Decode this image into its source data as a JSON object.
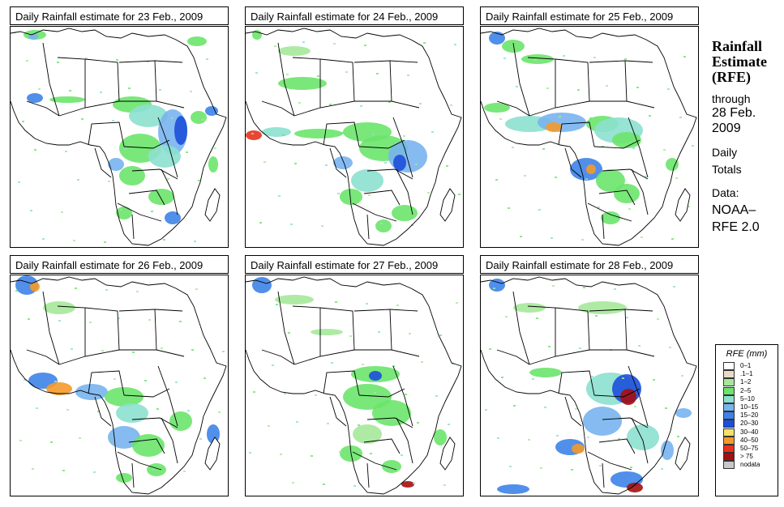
{
  "panels": [
    {
      "title": "Daily Rainfall estimate for  23 Feb., 2009",
      "day": 23
    },
    {
      "title": "Daily Rainfall estimate for  24 Feb., 2009",
      "day": 24
    },
    {
      "title": "Daily Rainfall estimate for  25 Feb., 2009",
      "day": 25
    },
    {
      "title": "Daily Rainfall estimate for  26 Feb., 2009",
      "day": 26
    },
    {
      "title": "Daily Rainfall estimate for  27 Feb., 2009",
      "day": 27
    },
    {
      "title": "Daily Rainfall estimate for  28 Feb., 2009",
      "day": 28
    }
  ],
  "info": {
    "title_line1": "Rainfall",
    "title_line2": "Estimate",
    "title_line3": "(RFE)",
    "through": "through",
    "through_date_1": "28 Feb.",
    "through_date_2": "2009",
    "period_1": "Daily",
    "period_2": "Totals",
    "data_label": "Data:",
    "data_source_1": "NOAA–",
    "data_source_2": "RFE 2.0"
  },
  "legend": {
    "title": "RFE (mm)",
    "items": [
      {
        "label": "0–1",
        "color": "#ffffff"
      },
      {
        "label": ".1–1",
        "color": "#e8dcc8"
      },
      {
        "label": "1–2",
        "color": "#a6e89a"
      },
      {
        "label": "2–5",
        "color": "#6be46b"
      },
      {
        "label": "5–10",
        "color": "#8ce0cf"
      },
      {
        "label": "10–15",
        "color": "#78b4ee"
      },
      {
        "label": "15–20",
        "color": "#3d83e8"
      },
      {
        "label": "20–30",
        "color": "#1c4fd9"
      },
      {
        "label": "30–40",
        "color": "#f5e06a"
      },
      {
        "label": "40–50",
        "color": "#f59a2a"
      },
      {
        "label": "50–75",
        "color": "#e8321e"
      },
      {
        "label": "> 75",
        "color": "#a50f0f"
      },
      {
        "label": "nodata",
        "color": "#c8c8c8"
      }
    ]
  }
}
